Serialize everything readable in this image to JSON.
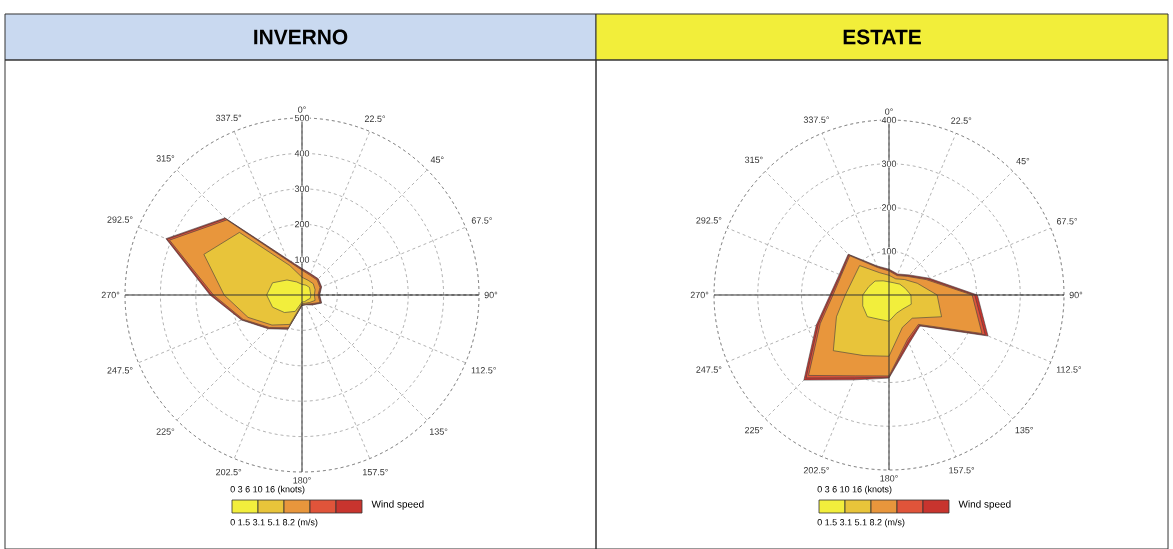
{
  "chart_data": [
    {
      "type": "radar",
      "title": "INVERNO",
      "categories": [
        "0°",
        "22.5°",
        "45°",
        "67.5°",
        "90°",
        "112.5°",
        "135°",
        "157.5°",
        "180°",
        "202.5°",
        "225°",
        "247.5°",
        "270°",
        "292.5°",
        "315°",
        "337.5°"
      ],
      "series": [
        {
          "color": "#f2ee3c",
          "values": [
            30,
            30,
            30,
            25,
            25,
            25,
            20,
            20,
            20,
            50,
            70,
            90,
            100,
            90,
            60,
            40
          ]
        },
        {
          "color": "#e8c43a",
          "values": [
            50,
            45,
            45,
            40,
            35,
            40,
            30,
            25,
            25,
            90,
            120,
            165,
            220,
            300,
            250,
            90
          ]
        },
        {
          "color": "#e8963c",
          "values": [
            70,
            60,
            60,
            55,
            45,
            55,
            35,
            28,
            28,
            100,
            130,
            180,
            250,
            405,
            300,
            105
          ]
        },
        {
          "color": "#e0543a",
          "values": [
            73,
            63,
            63,
            58,
            48,
            58,
            38,
            29,
            29,
            103,
            133,
            183,
            256,
            412,
            305,
            108
          ]
        },
        {
          "color": "#c8342e",
          "values": [
            75,
            65,
            65,
            60,
            50,
            60,
            40,
            30,
            30,
            105,
            135,
            185,
            260,
            416,
            308,
            111
          ]
        }
      ],
      "ylim": [
        0,
        500
      ],
      "yticks": [
        100,
        200,
        300,
        400,
        500
      ],
      "grid": true,
      "legend_title": "Wind speed",
      "annotations": [
        "0    3    6    10   16   (knots)",
        "0 1.5 3.1 5.1 8.2  (m/s)"
      ]
    },
    {
      "type": "radar",
      "title": "ESTATE",
      "categories": [
        "0°",
        "22.5°",
        "45°",
        "67.5°",
        "90°",
        "112.5°",
        "135°",
        "157.5°",
        "180°",
        "202.5°",
        "225°",
        "247.5°",
        "270°",
        "292.5°",
        "315°",
        "337.5°"
      ],
      "series": [
        {
          "color": "#f2ee3c",
          "values": [
            30,
            30,
            35,
            40,
            50,
            55,
            45,
            45,
            60,
            60,
            70,
            65,
            60,
            50,
            45,
            35
          ]
        },
        {
          "color": "#e8c43a",
          "values": [
            45,
            40,
            50,
            70,
            110,
            130,
            75,
            80,
            140,
            150,
            180,
            130,
            100,
            90,
            95,
            55
          ]
        },
        {
          "color": "#e8963c",
          "values": [
            55,
            48,
            60,
            92,
            190,
            230,
            95,
            110,
            185,
            200,
            260,
            170,
            128,
            118,
            127,
            68
          ]
        },
        {
          "color": "#e0543a",
          "values": [
            57,
            50,
            62,
            96,
            196,
            238,
            98,
            115,
            188,
            205,
            268,
            175,
            132,
            120,
            130,
            70
          ]
        },
        {
          "color": "#c8342e",
          "values": [
            59,
            52,
            65,
            100,
            202,
            245,
            100,
            120,
            190,
            210,
            275,
            180,
            135,
            123,
            132,
            72
          ]
        }
      ],
      "ylim": [
        0,
        400
      ],
      "yticks": [
        100,
        200,
        300,
        400
      ],
      "grid": true,
      "legend_title": "Wind speed",
      "annotations": [
        "0    3    6    10   16   (knots)",
        "0 1.5 3.1 5.1 8.2  (m/s)"
      ]
    }
  ]
}
